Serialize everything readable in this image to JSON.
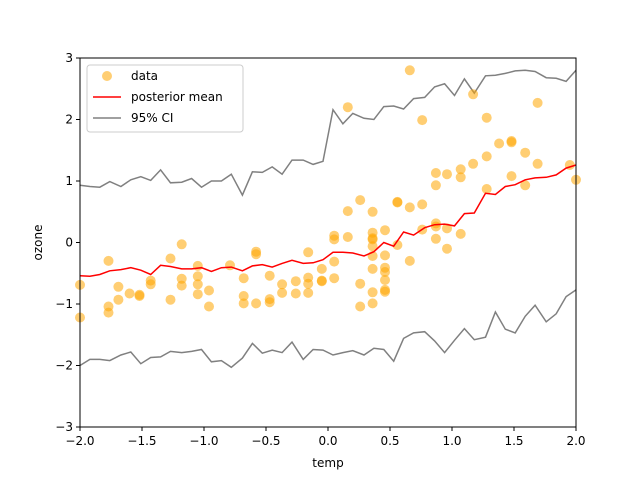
{
  "chart_data": {
    "type": "scatter",
    "title": "",
    "xlabel": "temp",
    "ylabel": "ozone",
    "xlim": [
      -2.0,
      2.0
    ],
    "ylim": [
      -3,
      3
    ],
    "xticks": [
      -2.0,
      -1.5,
      -1.0,
      -0.5,
      0.0,
      0.5,
      1.0,
      1.5,
      2.0
    ],
    "xtick_labels": [
      "−2.0",
      "−1.5",
      "−1.0",
      "−0.5",
      "0.0",
      "0.5",
      "1.0",
      "1.5",
      "2.0"
    ],
    "yticks": [
      -3,
      -2,
      -1,
      0,
      1,
      2,
      3
    ],
    "ytick_labels": [
      "−3",
      "−2",
      "−1",
      "0",
      "1",
      "2",
      "3"
    ],
    "grid": false,
    "legend": {
      "placement": "top-left",
      "entries": [
        "data",
        "posterior mean",
        "95% CI"
      ]
    },
    "colors": {
      "data": "#ffa500",
      "mean": "#ff0000",
      "ci": "#808080"
    },
    "scatter": [
      [
        -2.0,
        -0.69
      ],
      [
        -2.0,
        -1.22
      ],
      [
        -1.77,
        -0.3
      ],
      [
        -1.77,
        -1.04
      ],
      [
        -1.77,
        -1.14
      ],
      [
        -1.69,
        -0.72
      ],
      [
        -1.69,
        -0.93
      ],
      [
        -1.6,
        -0.83
      ],
      [
        -1.52,
        -0.85
      ],
      [
        -1.52,
        -0.87
      ],
      [
        -1.43,
        -0.62
      ],
      [
        -1.43,
        -0.68
      ],
      [
        -1.27,
        -0.93
      ],
      [
        -1.27,
        -0.26
      ],
      [
        -1.18,
        -0.03
      ],
      [
        -1.18,
        -0.59
      ],
      [
        -1.18,
        -0.7
      ],
      [
        -1.05,
        -0.38
      ],
      [
        -1.05,
        -0.55
      ],
      [
        -1.05,
        -0.68
      ],
      [
        -1.05,
        -0.84
      ],
      [
        -0.96,
        -0.78
      ],
      [
        -0.96,
        -1.04
      ],
      [
        -0.79,
        -0.37
      ],
      [
        -0.68,
        -0.58
      ],
      [
        -0.68,
        -0.87
      ],
      [
        -0.68,
        -0.99
      ],
      [
        -0.58,
        -0.15
      ],
      [
        -0.58,
        -0.19
      ],
      [
        -0.58,
        -0.99
      ],
      [
        -0.47,
        -0.54
      ],
      [
        -0.47,
        -0.92
      ],
      [
        -0.47,
        -0.97
      ],
      [
        -0.37,
        -0.68
      ],
      [
        -0.37,
        -0.82
      ],
      [
        -0.26,
        -0.63
      ],
      [
        -0.26,
        -0.83
      ],
      [
        -0.16,
        -0.16
      ],
      [
        -0.16,
        -0.57
      ],
      [
        -0.16,
        -0.67
      ],
      [
        -0.16,
        -0.82
      ],
      [
        -0.05,
        -0.43
      ],
      [
        -0.05,
        -0.62
      ],
      [
        -0.05,
        -0.63
      ],
      [
        0.05,
        0.11
      ],
      [
        0.05,
        0.05
      ],
      [
        0.05,
        -0.31
      ],
      [
        0.05,
        -0.58
      ],
      [
        0.16,
        2.2
      ],
      [
        0.16,
        0.51
      ],
      [
        0.16,
        0.09
      ],
      [
        0.26,
        0.69
      ],
      [
        0.26,
        -0.67
      ],
      [
        0.26,
        -1.04
      ],
      [
        0.36,
        0.5
      ],
      [
        0.36,
        0.16
      ],
      [
        0.36,
        0.07
      ],
      [
        0.36,
        0.05
      ],
      [
        0.36,
        -0.06
      ],
      [
        0.36,
        -0.22
      ],
      [
        0.36,
        -0.43
      ],
      [
        0.36,
        -0.81
      ],
      [
        0.36,
        -0.99
      ],
      [
        0.46,
        0.2
      ],
      [
        0.46,
        -0.21
      ],
      [
        0.46,
        -0.41
      ],
      [
        0.46,
        -0.48
      ],
      [
        0.46,
        -0.61
      ],
      [
        0.46,
        -0.77
      ],
      [
        0.46,
        -0.8
      ],
      [
        0.56,
        0.66
      ],
      [
        0.56,
        0.65
      ],
      [
        0.56,
        -0.04
      ],
      [
        0.66,
        2.8
      ],
      [
        0.66,
        0.57
      ],
      [
        0.66,
        -0.3
      ],
      [
        0.76,
        1.99
      ],
      [
        0.76,
        0.62
      ],
      [
        0.76,
        0.21
      ],
      [
        0.87,
        1.13
      ],
      [
        0.87,
        0.93
      ],
      [
        0.87,
        0.31
      ],
      [
        0.87,
        0.26
      ],
      [
        0.87,
        0.06
      ],
      [
        0.96,
        1.11
      ],
      [
        0.96,
        0.23
      ],
      [
        0.96,
        -0.1
      ],
      [
        1.07,
        1.19
      ],
      [
        1.07,
        1.06
      ],
      [
        1.07,
        0.14
      ],
      [
        1.17,
        2.41
      ],
      [
        1.17,
        1.28
      ],
      [
        1.28,
        2.03
      ],
      [
        1.28,
        1.4
      ],
      [
        1.28,
        0.87
      ],
      [
        1.38,
        1.61
      ],
      [
        1.48,
        1.65
      ],
      [
        1.48,
        1.63
      ],
      [
        1.48,
        1.08
      ],
      [
        1.59,
        1.46
      ],
      [
        1.59,
        0.93
      ],
      [
        1.69,
        2.27
      ],
      [
        1.69,
        1.28
      ],
      [
        1.95,
        1.26
      ],
      [
        2.0,
        1.02
      ]
    ],
    "series": [
      {
        "name": "posterior mean",
        "x": [
          -2.0,
          -1.92,
          -1.84,
          -1.76,
          -1.67,
          -1.59,
          -1.51,
          -1.43,
          -1.35,
          -1.27,
          -1.18,
          -1.1,
          -1.02,
          -0.94,
          -0.86,
          -0.78,
          -0.69,
          -0.61,
          -0.53,
          -0.45,
          -0.37,
          -0.29,
          -0.2,
          -0.12,
          -0.04,
          0.04,
          0.12,
          0.2,
          0.29,
          0.37,
          0.45,
          0.53,
          0.61,
          0.69,
          0.78,
          0.86,
          0.94,
          1.02,
          1.1,
          1.18,
          1.27,
          1.35,
          1.43,
          1.51,
          1.59,
          1.67,
          1.76,
          1.84,
          1.92,
          2.0
        ],
        "y": [
          -0.54,
          -0.55,
          -0.52,
          -0.46,
          -0.44,
          -0.41,
          -0.45,
          -0.52,
          -0.37,
          -0.39,
          -0.43,
          -0.43,
          -0.41,
          -0.47,
          -0.41,
          -0.4,
          -0.46,
          -0.38,
          -0.36,
          -0.4,
          -0.34,
          -0.29,
          -0.34,
          -0.33,
          -0.28,
          -0.16,
          -0.16,
          -0.17,
          -0.22,
          -0.15,
          0.0,
          -0.06,
          0.17,
          0.12,
          0.24,
          0.29,
          0.3,
          0.27,
          0.47,
          0.48,
          0.8,
          0.78,
          0.91,
          0.94,
          1.02,
          1.05,
          1.06,
          1.1,
          1.21,
          1.26
        ]
      },
      {
        "name": "95% CI",
        "x": [
          -2.0,
          -1.92,
          -1.84,
          -1.76,
          -1.67,
          -1.59,
          -1.51,
          -1.43,
          -1.35,
          -1.27,
          -1.18,
          -1.1,
          -1.02,
          -0.94,
          -0.86,
          -0.78,
          -0.69,
          -0.61,
          -0.53,
          -0.45,
          -0.37,
          -0.29,
          -0.2,
          -0.12,
          -0.04,
          0.04,
          0.12,
          0.2,
          0.29,
          0.37,
          0.45,
          0.53,
          0.61,
          0.69,
          0.78,
          0.86,
          0.94,
          1.02,
          1.1,
          1.18,
          1.27,
          1.35,
          1.43,
          1.51,
          1.59,
          1.67,
          1.76,
          1.84,
          1.92,
          2.0
        ],
        "y": [
          0.93,
          0.91,
          0.9,
          0.99,
          0.91,
          1.02,
          1.07,
          1.01,
          1.18,
          0.97,
          0.98,
          1.04,
          0.9,
          1.0,
          1.0,
          1.11,
          0.77,
          1.15,
          1.14,
          1.23,
          1.11,
          1.34,
          1.34,
          1.27,
          1.32,
          2.16,
          1.93,
          2.1,
          2.02,
          2.0,
          2.21,
          2.22,
          2.17,
          2.34,
          2.36,
          2.53,
          2.58,
          2.39,
          2.66,
          2.43,
          2.71,
          2.72,
          2.75,
          2.79,
          2.8,
          2.78,
          2.68,
          2.67,
          2.62,
          2.8
        ]
      },
      {
        "name": "95% CI lower",
        "x": [
          -2.0,
          -1.92,
          -1.84,
          -1.76,
          -1.67,
          -1.59,
          -1.51,
          -1.43,
          -1.35,
          -1.27,
          -1.18,
          -1.1,
          -1.02,
          -0.94,
          -0.86,
          -0.78,
          -0.69,
          -0.61,
          -0.53,
          -0.45,
          -0.37,
          -0.29,
          -0.2,
          -0.12,
          -0.04,
          0.04,
          0.12,
          0.2,
          0.29,
          0.37,
          0.45,
          0.53,
          0.61,
          0.69,
          0.78,
          0.86,
          0.94,
          1.02,
          1.1,
          1.18,
          1.27,
          1.35,
          1.43,
          1.51,
          1.59,
          1.67,
          1.76,
          1.84,
          1.92,
          2.0
        ],
        "y": [
          -2.0,
          -1.9,
          -1.9,
          -1.92,
          -1.83,
          -1.78,
          -1.97,
          -1.87,
          -1.86,
          -1.77,
          -1.79,
          -1.77,
          -1.74,
          -1.94,
          -1.92,
          -2.03,
          -1.88,
          -1.64,
          -1.8,
          -1.75,
          -1.79,
          -1.62,
          -1.9,
          -1.74,
          -1.75,
          -1.83,
          -1.79,
          -1.76,
          -1.83,
          -1.72,
          -1.74,
          -1.93,
          -1.56,
          -1.47,
          -1.45,
          -1.6,
          -1.79,
          -1.59,
          -1.4,
          -1.58,
          -1.54,
          -1.13,
          -1.41,
          -1.47,
          -1.2,
          -1.02,
          -1.29,
          -1.16,
          -0.88,
          -0.77
        ]
      }
    ]
  }
}
